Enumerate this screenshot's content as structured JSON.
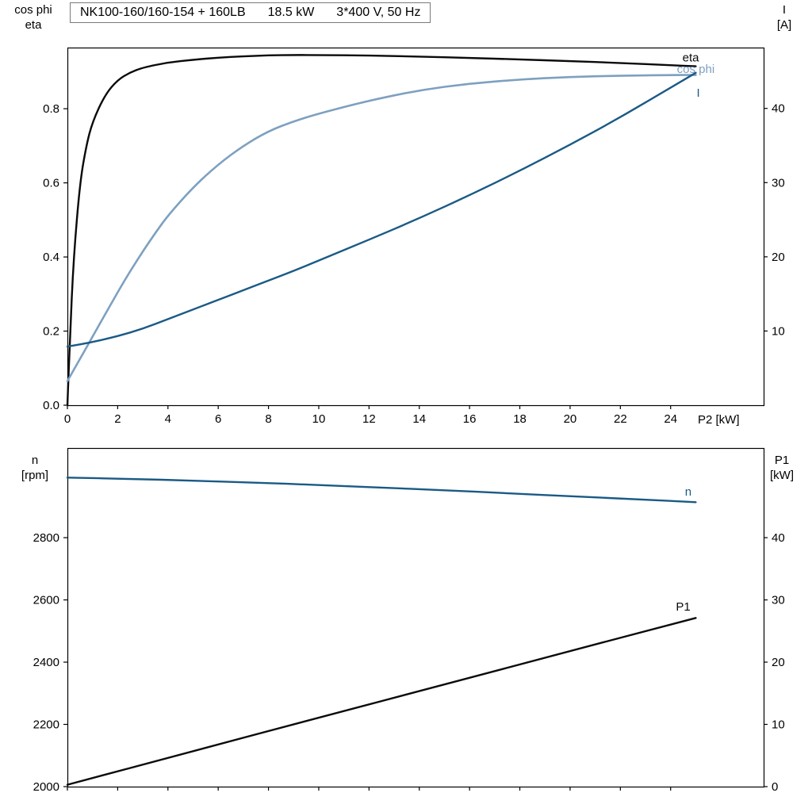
{
  "title": {
    "model": "NK100-160/160-154 + 160LB",
    "power": "18.5 kW",
    "voltage": "3*400 V, 50 Hz"
  },
  "axis_corner_labels": {
    "top_left": [
      "cos phi",
      "eta"
    ],
    "top_right": [
      "I",
      "[A]"
    ],
    "bottom_left": [
      "n",
      "[rpm]"
    ],
    "bottom_right": [
      "P1",
      "[kW]"
    ],
    "x_label": "P2 [kW]"
  },
  "colors": {
    "curve_black": "#0a0a0a",
    "curve_dark_blue": "#1a5a85",
    "curve_light_blue": "#7ea0c0",
    "frame": "#000000",
    "background": "#ffffff"
  },
  "chart_data": [
    {
      "type": "line",
      "title": "NK100-160/160-154 + 160LB  18.5 kW  3*400 V, 50 Hz",
      "xlabel": "P2 [kW]",
      "grid": false,
      "legend": "inline-labels",
      "x_range": [
        0,
        27.7
      ],
      "x_ticks": [
        0,
        2,
        4,
        6,
        8,
        10,
        12,
        14,
        16,
        18,
        20,
        22,
        24
      ],
      "x_tick_labels": [
        "0",
        "2",
        "4",
        "6",
        "8",
        "10",
        "12",
        "14",
        "16",
        "18",
        "20",
        "22",
        "24"
      ],
      "y_left": {
        "label": "cos phi / eta",
        "range": [
          0,
          0.965
        ],
        "ticks": [
          0,
          0.2,
          0.4,
          0.6,
          0.8
        ],
        "tick_labels": [
          "0.0",
          "0.2",
          "0.4",
          "0.6",
          "0.8"
        ]
      },
      "y_right": {
        "label": "I [A]",
        "range": [
          0,
          48.2
        ],
        "ticks": [
          10,
          20,
          30,
          40
        ],
        "tick_labels": [
          "10",
          "20",
          "30",
          "40"
        ]
      },
      "series": [
        {
          "name": "eta",
          "axis": "left",
          "color": "#0a0a0a",
          "width": 2.4,
          "x": [
            0,
            0.1,
            0.25,
            0.5,
            0.75,
            1,
            1.5,
            2,
            2.5,
            3,
            4,
            5,
            6,
            7,
            8,
            9,
            10,
            12,
            14,
            16,
            18,
            20,
            22,
            24,
            25
          ],
          "y": [
            0,
            0.18,
            0.4,
            0.6,
            0.7,
            0.765,
            0.838,
            0.878,
            0.898,
            0.911,
            0.925,
            0.932,
            0.938,
            0.9415,
            0.944,
            0.945,
            0.9448,
            0.9435,
            0.9408,
            0.9372,
            0.933,
            0.9285,
            0.9235,
            0.9175,
            0.9145
          ],
          "label": {
            "text": "eta",
            "x": 24.8,
            "y": 0.928
          }
        },
        {
          "name": "cos phi",
          "axis": "left",
          "color": "#7ea0c0",
          "width": 2.6,
          "x": [
            0,
            0.5,
            1,
            1.5,
            2,
            2.5,
            3,
            3.5,
            4,
            5,
            6,
            7,
            8,
            9,
            10,
            12,
            14,
            16,
            18,
            20,
            22,
            24,
            25
          ],
          "y": [
            0.065,
            0.125,
            0.185,
            0.245,
            0.305,
            0.362,
            0.415,
            0.465,
            0.512,
            0.588,
            0.65,
            0.7,
            0.74,
            0.766,
            0.787,
            0.822,
            0.85,
            0.868,
            0.879,
            0.886,
            0.889,
            0.891,
            0.891
          ],
          "label": {
            "text": "cos phi",
            "x": 25.0,
            "y": 0.896
          }
        },
        {
          "name": "I",
          "axis": "right",
          "color": "#1a5a85",
          "width": 2.4,
          "x": [
            0,
            1,
            2,
            3,
            4,
            5,
            6,
            7,
            8,
            9,
            10,
            12,
            14,
            16,
            18,
            20,
            22,
            24,
            25
          ],
          "y": [
            7.9,
            8.5,
            9.3,
            10.3,
            11.6,
            12.9,
            14.2,
            15.5,
            16.8,
            18.1,
            19.5,
            22.3,
            25.2,
            28.3,
            31.6,
            35.1,
            38.8,
            42.8,
            44.8
          ],
          "label": {
            "text": "I",
            "x": 25.1,
            "y": 41.6
          }
        }
      ]
    },
    {
      "type": "line",
      "xlabel": "",
      "grid": false,
      "legend": "inline-labels",
      "x_range": [
        0,
        27.7
      ],
      "x_ticks": [
        0,
        2,
        4,
        6,
        8,
        10,
        12,
        14,
        16,
        18,
        20,
        22,
        24
      ],
      "x_tick_labels": [],
      "y_left": {
        "label": "n [rpm]",
        "range": [
          2000,
          3088
        ],
        "ticks": [
          2000,
          2200,
          2400,
          2600,
          2800
        ],
        "tick_labels": [
          "2000",
          "2200",
          "2400",
          "2600",
          "2800"
        ]
      },
      "y_right": {
        "label": "P1 [kW]",
        "range": [
          0,
          54.4
        ],
        "ticks": [
          0,
          10,
          20,
          30,
          40
        ],
        "tick_labels": [
          "0",
          "10",
          "20",
          "30",
          "40"
        ]
      },
      "series": [
        {
          "name": "n",
          "axis": "left",
          "color": "#1a5a85",
          "width": 2.4,
          "x": [
            0,
            2.5,
            5,
            7.5,
            10,
            12.5,
            15,
            17.5,
            20,
            22.5,
            25
          ],
          "y": [
            2993,
            2989,
            2983,
            2977,
            2969,
            2961,
            2952,
            2943,
            2933,
            2924,
            2914
          ],
          "label": {
            "text": "n",
            "x": 24.7,
            "y": 2935
          }
        },
        {
          "name": "P1",
          "axis": "right",
          "color": "#0a0a0a",
          "width": 2.4,
          "x": [
            0,
            5,
            10,
            15,
            20,
            25
          ],
          "y": [
            0.3,
            5.7,
            11.1,
            16.4,
            21.8,
            27.1
          ],
          "label": {
            "text": "P1",
            "x": 24.5,
            "y": 28.3
          }
        }
      ]
    }
  ]
}
